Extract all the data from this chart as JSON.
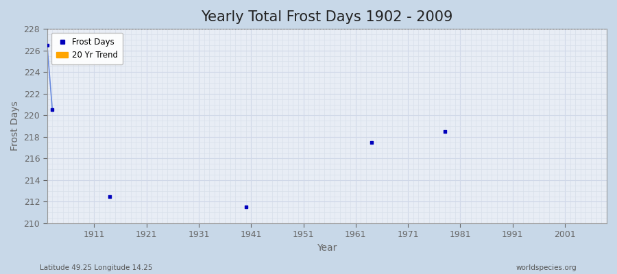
{
  "title": "Yearly Total Frost Days 1902 - 2009",
  "xlabel": "Year",
  "ylabel": "Frost Days",
  "subtitle_left": "Latitude 49.25 Longitude 14.25",
  "subtitle_right": "worldspecies.org",
  "ylim": [
    210,
    228
  ],
  "xlim": [
    1902,
    2009
  ],
  "yticks": [
    210,
    212,
    214,
    216,
    218,
    220,
    222,
    224,
    226,
    228
  ],
  "xticks": [
    1911,
    1921,
    1931,
    1941,
    1951,
    1961,
    1971,
    1981,
    1991,
    2001
  ],
  "frost_days_x": [
    1902,
    1903,
    1914,
    1940,
    1964,
    1978
  ],
  "frost_days_y": [
    226.5,
    220.5,
    212.5,
    211.5,
    217.5,
    218.5
  ],
  "line_x": [
    1902,
    1903
  ],
  "line_y": [
    226.5,
    220.5
  ],
  "dot_color": "#0000bb",
  "line_color": "#6688dd",
  "background_color": "#c8d8e8",
  "plot_background": "#e8edf5",
  "grid_major_color": "#d0d8e8",
  "grid_minor_color": "#d8e0ea",
  "hline_y": 228,
  "hline_color": "#555555",
  "hline_style": "dotted",
  "legend_frost_label": "Frost Days",
  "legend_trend_label": "20 Yr Trend",
  "legend_trend_color": "#ffa500",
  "title_fontsize": 15,
  "axis_label_fontsize": 10,
  "tick_fontsize": 9,
  "tick_color": "#666666"
}
